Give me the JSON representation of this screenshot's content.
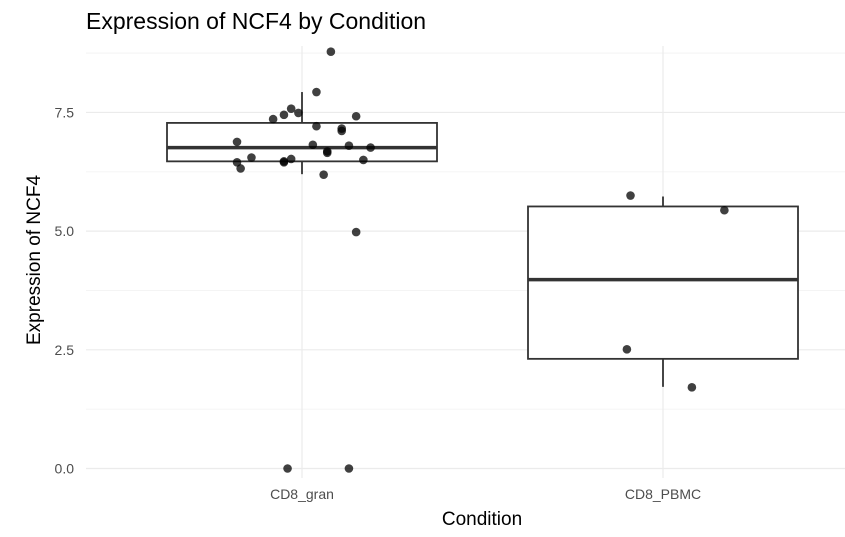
{
  "chart_data": {
    "type": "boxplot",
    "title": "Expression of NCF4 by Condition",
    "xlabel": "Condition",
    "ylabel": "Expression of NCF4",
    "categories": [
      "CD8_gran",
      "CD8_PBMC"
    ],
    "ylim": [
      -0.2,
      8.9
    ],
    "yticks": [
      0.0,
      2.5,
      5.0,
      7.5
    ],
    "ytick_labels": [
      "0.0",
      "2.5",
      "5.0",
      "7.5"
    ],
    "grid": true,
    "boxes": [
      {
        "category": "CD8_gran",
        "whisker_low": 6.2,
        "q1": 6.47,
        "median": 6.76,
        "q3": 7.28,
        "whisker_high": 7.93
      },
      {
        "category": "CD8_PBMC",
        "whisker_low": 1.72,
        "q1": 2.31,
        "median": 3.98,
        "q3": 5.52,
        "whisker_high": 5.73
      }
    ],
    "points": [
      {
        "category": "CD8_gran",
        "jitter": 0.08,
        "y": 8.78
      },
      {
        "category": "CD8_gran",
        "jitter": 0.04,
        "y": 7.93
      },
      {
        "category": "CD8_gran",
        "jitter": -0.03,
        "y": 7.58
      },
      {
        "category": "CD8_gran",
        "jitter": -0.01,
        "y": 7.49
      },
      {
        "category": "CD8_gran",
        "jitter": -0.05,
        "y": 7.45
      },
      {
        "category": "CD8_gran",
        "jitter": -0.08,
        "y": 7.36
      },
      {
        "category": "CD8_gran",
        "jitter": 0.15,
        "y": 7.42
      },
      {
        "category": "CD8_gran",
        "jitter": 0.04,
        "y": 7.21
      },
      {
        "category": "CD8_gran",
        "jitter": 0.11,
        "y": 7.16
      },
      {
        "category": "CD8_gran",
        "jitter": 0.11,
        "y": 7.11
      },
      {
        "category": "CD8_gran",
        "jitter": -0.18,
        "y": 6.88
      },
      {
        "category": "CD8_gran",
        "jitter": 0.03,
        "y": 6.82
      },
      {
        "category": "CD8_gran",
        "jitter": 0.13,
        "y": 6.8
      },
      {
        "category": "CD8_gran",
        "jitter": 0.19,
        "y": 6.76
      },
      {
        "category": "CD8_gran",
        "jitter": 0.07,
        "y": 6.68
      },
      {
        "category": "CD8_gran",
        "jitter": 0.07,
        "y": 6.65
      },
      {
        "category": "CD8_gran",
        "jitter": -0.14,
        "y": 6.55
      },
      {
        "category": "CD8_gran",
        "jitter": -0.03,
        "y": 6.52
      },
      {
        "category": "CD8_gran",
        "jitter": -0.05,
        "y": 6.47
      },
      {
        "category": "CD8_gran",
        "jitter": -0.05,
        "y": 6.45
      },
      {
        "category": "CD8_gran",
        "jitter": 0.17,
        "y": 6.5
      },
      {
        "category": "CD8_gran",
        "jitter": -0.18,
        "y": 6.45
      },
      {
        "category": "CD8_gran",
        "jitter": -0.17,
        "y": 6.32
      },
      {
        "category": "CD8_gran",
        "jitter": 0.06,
        "y": 6.19
      },
      {
        "category": "CD8_gran",
        "jitter": 0.15,
        "y": 4.98
      },
      {
        "category": "CD8_gran",
        "jitter": -0.04,
        "y": 0.0
      },
      {
        "category": "CD8_gran",
        "jitter": 0.13,
        "y": 0.0
      },
      {
        "category": "CD8_PBMC",
        "jitter": -0.09,
        "y": 5.75
      },
      {
        "category": "CD8_PBMC",
        "jitter": 0.17,
        "y": 5.44
      },
      {
        "category": "CD8_PBMC",
        "jitter": -0.1,
        "y": 2.51
      },
      {
        "category": "CD8_PBMC",
        "jitter": 0.08,
        "y": 1.71
      }
    ]
  }
}
